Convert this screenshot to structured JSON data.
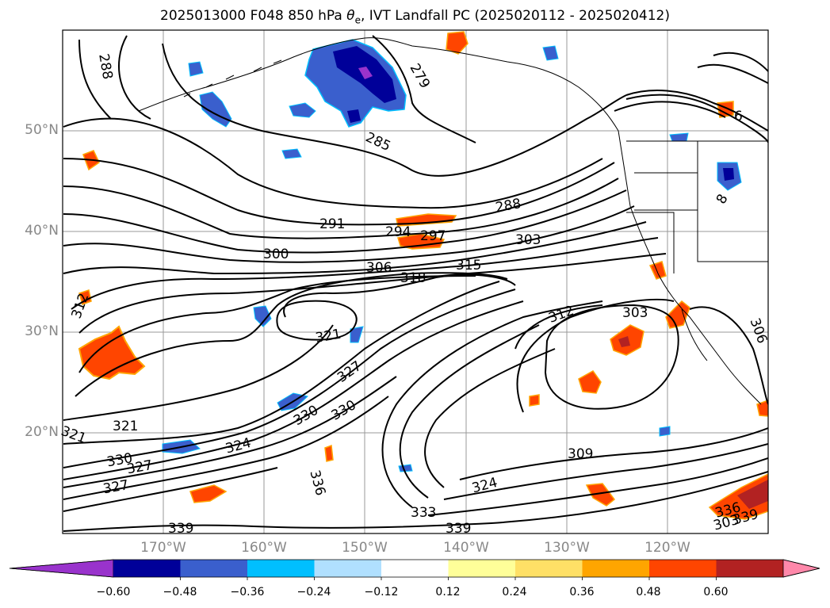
{
  "title": {
    "prefix": "2025013000 F048 850 hPa ",
    "symbol": "θ",
    "symbol_sub": "e",
    "suffix": ", IVT Landfall PC (2025020112 - 2025020412)"
  },
  "lat_labels": [
    "50°N",
    "40°N",
    "30°N",
    "20°N"
  ],
  "lon_labels": [
    "170°W",
    "160°W",
    "150°W",
    "140°W",
    "130°W",
    "120°W"
  ],
  "colorbar": {
    "colors": [
      "#9933cc",
      "#000099",
      "#3a5fcd",
      "#00bfff",
      "#b0e0ff",
      "#ffffff",
      "#ffff99",
      "#ffe066",
      "#ffa500",
      "#ff4500",
      "#b22222",
      "#ff88aa"
    ],
    "tick_labels": [
      "−0.60",
      "−0.48",
      "−0.36",
      "−0.24",
      "−0.12",
      "0.12",
      "0.24",
      "0.36",
      "0.48",
      "0.60"
    ]
  },
  "contour_labels": [
    "288",
    "279",
    "285",
    "288",
    "291",
    "294",
    "297",
    "303",
    "300",
    "306",
    "318",
    "315",
    "312",
    "321",
    "327",
    "330",
    "330",
    "321",
    "321",
    "324",
    "330",
    "327",
    "327",
    "336",
    "339",
    "333",
    "339",
    "324",
    "309",
    "303",
    "312",
    "303",
    "306",
    "339",
    "336",
    "6",
    "8"
  ],
  "map": {
    "grid_lon": [
      -170,
      -160,
      -150,
      -140,
      -130,
      -120
    ],
    "grid_lat": [
      50,
      40,
      30,
      20
    ],
    "lon_range": [
      -180,
      -110
    ],
    "lat_range": [
      10,
      60
    ]
  }
}
